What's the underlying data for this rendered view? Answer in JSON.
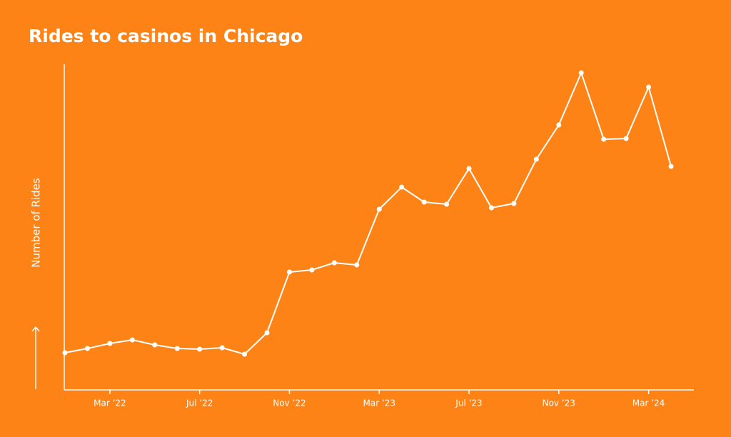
{
  "chart_data": {
    "type": "line",
    "title": "Rides to casinos in Chicago",
    "ylabel": "Number of Rides",
    "categories": [
      null,
      null,
      "Mar ’22",
      null,
      null,
      null,
      "Jul ’22",
      null,
      null,
      null,
      "Nov ’22",
      null,
      null,
      null,
      "Mar ’23",
      null,
      null,
      null,
      "Jul ’23",
      null,
      null,
      null,
      "Nov ’23",
      null,
      null,
      null,
      "Mar ’24",
      null
    ],
    "series": [
      {
        "name": "Rides",
        "color": "#ffffff",
        "values": [
          52,
          58,
          65,
          70,
          63,
          58,
          57,
          59,
          50,
          80,
          165,
          168,
          178,
          175,
          253,
          284,
          263,
          260,
          310,
          255,
          261,
          323,
          371,
          444,
          351,
          352,
          424,
          313
        ]
      }
    ],
    "ylim": [
      0,
      456
    ]
  }
}
